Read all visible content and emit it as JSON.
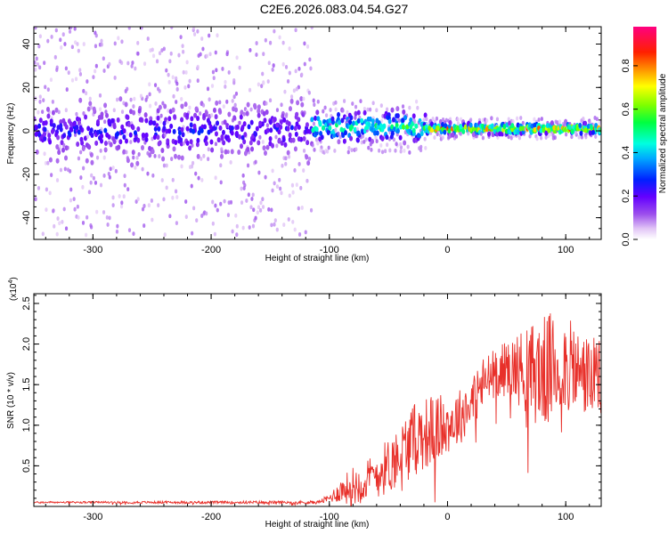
{
  "title": "C2E6.2026.083.04.54.G27",
  "chart_data": [
    {
      "type": "heatmap",
      "xlabel": "Height of straight line (km)",
      "ylabel": "Frequency (Hz)",
      "xlim": [
        -350,
        130
      ],
      "ylim": [
        -50,
        48
      ],
      "x_ticks": [
        -300,
        -200,
        -100,
        0,
        100
      ],
      "x_tick_labels": [
        "-300",
        "-200",
        "-100",
        "0",
        "100"
      ],
      "y_ticks": [
        -40,
        -20,
        0,
        20,
        40
      ],
      "y_tick_labels": [
        "-40",
        "-20",
        "0",
        "20",
        "40"
      ],
      "colorbar": {
        "label": "Normalized spectral amplitude",
        "range": [
          0,
          0.98
        ],
        "ticks": [
          0.0,
          0.2,
          0.4,
          0.6,
          0.8
        ],
        "tick_labels": [
          "0.0",
          "0.2",
          "0.4",
          "0.6",
          "0.8"
        ],
        "colormap": "rainbow (white-violet-purple-blue-cyan-green-yellow-orange-red-magenta)"
      },
      "regions": [
        {
          "x": [
            -350,
            -115
          ],
          "center_hz": 0,
          "core_halfwidth_hz": 10,
          "sparse_halfwidth_hz": 48,
          "peak_amplitude": 0.3
        },
        {
          "x": [
            -115,
            -20
          ],
          "center_hz": 2,
          "core_halfwidth_hz": 6,
          "sparse_halfwidth_hz": 12,
          "peak_amplitude": 0.6
        },
        {
          "x": [
            -20,
            130
          ],
          "center_hz": 1,
          "core_halfwidth_hz": 2,
          "sparse_halfwidth_hz": 5,
          "peak_amplitude": 0.9
        }
      ]
    },
    {
      "type": "line",
      "xlabel": "Height of straight line (km)",
      "ylabel": "SNR (10 * v/v)",
      "y_multiplier_label": "(x10",
      "y_multiplier_exponent": "4",
      "y_multiplier_suffix": ")",
      "xlim": [
        -350,
        130
      ],
      "ylim": [
        0,
        2.62
      ],
      "x_ticks": [
        -300,
        -200,
        -100,
        0,
        100
      ],
      "x_tick_labels": [
        "-300",
        "-200",
        "-100",
        "0",
        "100"
      ],
      "y_ticks": [
        0.5,
        1.0,
        1.5,
        2.0,
        2.5
      ],
      "y_tick_labels": [
        "0.5",
        "1.0",
        "1.5",
        "2.0",
        "2.5"
      ],
      "color": "#e8302a",
      "envelope": {
        "x": [
          -350,
          -110,
          -100,
          -90,
          -80,
          -70,
          -60,
          -50,
          -40,
          -30,
          -20,
          -10,
          0,
          10,
          20,
          30,
          40,
          50,
          60,
          70,
          80,
          90,
          100,
          110,
          120,
          130
        ],
        "mean": [
          0.05,
          0.05,
          0.1,
          0.2,
          0.25,
          0.3,
          0.4,
          0.5,
          0.65,
          0.8,
          0.9,
          0.95,
          1.0,
          1.1,
          1.3,
          1.5,
          1.65,
          1.7,
          1.7,
          1.65,
          1.65,
          1.7,
          1.75,
          1.65,
          1.6,
          1.55
        ],
        "spread": [
          0.01,
          0.02,
          0.05,
          0.15,
          0.25,
          0.25,
          0.3,
          0.35,
          0.4,
          0.45,
          0.45,
          0.45,
          0.35,
          0.35,
          0.35,
          0.35,
          0.3,
          0.35,
          0.45,
          0.6,
          0.7,
          0.7,
          0.6,
          0.55,
          0.5,
          0.5
        ]
      }
    }
  ]
}
